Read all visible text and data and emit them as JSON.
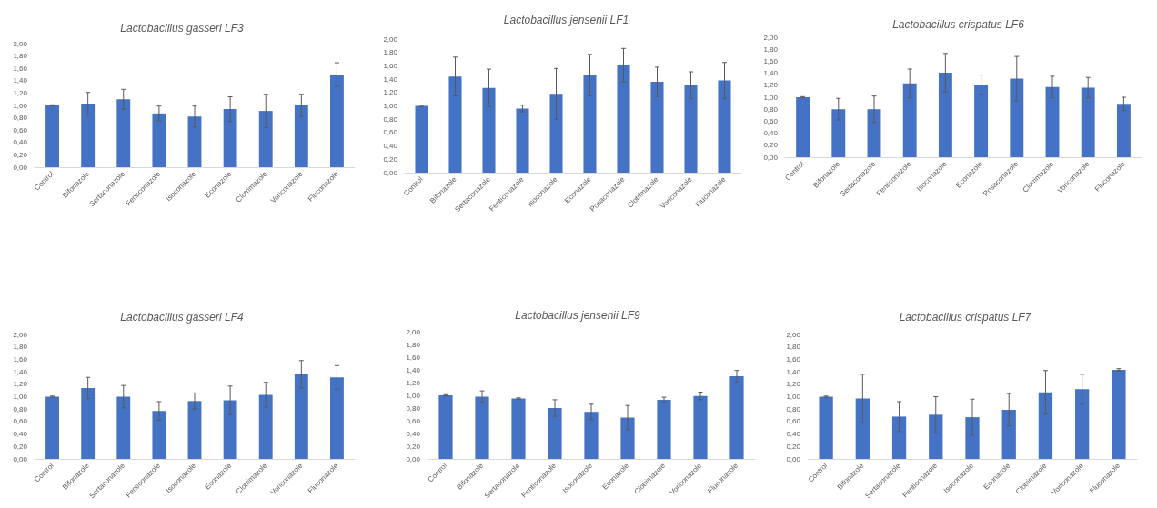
{
  "chart_data": [
    {
      "type": "bar",
      "title": "Lactobacillus gasseri LF3",
      "categories": [
        "Control",
        "Bifonazole",
        "Sertaconazole",
        "Fenticonazole",
        "Isoconazole",
        "Econazole",
        "Clotrimazole",
        "Voriconazole",
        "Fluconazole"
      ],
      "values": [
        1.0,
        1.03,
        1.1,
        0.87,
        0.82,
        0.94,
        0.91,
        1.0,
        1.5
      ],
      "errors": [
        0.01,
        0.18,
        0.16,
        0.12,
        0.17,
        0.2,
        0.27,
        0.18,
        0.19
      ],
      "color": "#4472c4",
      "ylim": [
        0,
        2
      ],
      "yticks": [
        {
          "value": 0,
          "label": "0,00"
        },
        {
          "value": 0.2,
          "label": "0,20"
        },
        {
          "value": 0.4,
          "label": "0,40"
        },
        {
          "value": 0.6,
          "label": "0,60"
        },
        {
          "value": 0.8,
          "label": "0,80"
        },
        {
          "value": 1,
          "label": "1,00"
        },
        {
          "value": 1.2,
          "label": "1,20"
        },
        {
          "value": 1.4,
          "label": "1,40"
        },
        {
          "value": 1.6,
          "label": "1,60"
        },
        {
          "value": 1.8,
          "label": "1,80"
        },
        {
          "value": 2,
          "label": "2,00"
        }
      ]
    },
    {
      "type": "bar",
      "title": "Lactobacillus jensenii LF1",
      "categories": [
        "Control",
        "Bifonazole",
        "Sertaconazole",
        "Fenticonazole",
        "Isoconazole",
        "Econazole",
        "Posaconazole",
        "Clotrimazole",
        "Voriconazole",
        "Fluconazole"
      ],
      "values": [
        1.0,
        1.44,
        1.27,
        0.96,
        1.18,
        1.46,
        1.61,
        1.36,
        1.31,
        1.38
      ],
      "errors": [
        0.01,
        0.29,
        0.28,
        0.05,
        0.38,
        0.31,
        0.25,
        0.22,
        0.2,
        0.27
      ],
      "color": "#4472c4",
      "ylim": [
        0,
        2
      ],
      "yticks": [
        {
          "value": 0,
          "label": "0,00"
        },
        {
          "value": 0.2,
          "label": "0,20"
        },
        {
          "value": 0.4,
          "label": "0,40"
        },
        {
          "value": 0.6,
          "label": "0,60"
        },
        {
          "value": 0.8,
          "label": "0,80"
        },
        {
          "value": 1,
          "label": "1,00"
        },
        {
          "value": 1.2,
          "label": "1,20"
        },
        {
          "value": 1.4,
          "label": "1,40"
        },
        {
          "value": 1.6,
          "label": "1,60"
        },
        {
          "value": 1.8,
          "label": "1,80"
        },
        {
          "value": 2,
          "label": "2,00"
        }
      ]
    },
    {
      "type": "bar",
      "title": "Lactobacillus crispatus LF6",
      "categories": [
        "Control",
        "Bifonazole",
        "Sertaconazole",
        "Fenticonazole",
        "Isoconazole",
        "Econazole",
        "Posaconazole",
        "Clotrimazole",
        "Voriconazole",
        "Fluconazole"
      ],
      "values": [
        1.0,
        0.8,
        0.8,
        1.23,
        1.41,
        1.21,
        1.31,
        1.17,
        1.16,
        0.89
      ],
      "errors": [
        0.01,
        0.18,
        0.22,
        0.24,
        0.32,
        0.16,
        0.37,
        0.18,
        0.17,
        0.11
      ],
      "color": "#4472c4",
      "ylim": [
        0,
        2
      ],
      "yticks": [
        {
          "value": 0,
          "label": "0,00"
        },
        {
          "value": 0.2,
          "label": "0,20"
        },
        {
          "value": 0.4,
          "label": "0,40"
        },
        {
          "value": 0.6,
          "label": "0,60"
        },
        {
          "value": 0.8,
          "label": "0,80"
        },
        {
          "value": 1,
          "label": "1,00"
        },
        {
          "value": 1.2,
          "label": "1,20"
        },
        {
          "value": 1.4,
          "label": "1,40"
        },
        {
          "value": 1.6,
          "label": "1,60"
        },
        {
          "value": 1.8,
          "label": "1,80"
        },
        {
          "value": 2,
          "label": "2,00"
        }
      ]
    },
    {
      "type": "bar",
      "title": "Lactobacillus gasseri LF4",
      "categories": [
        "Control",
        "Bifonazole",
        "Sertaconazole",
        "Fenticonazole",
        "Isoconazole",
        "Econazole",
        "Clotrimazole",
        "Voriconazole",
        "Fluconazole"
      ],
      "values": [
        1.0,
        1.14,
        1.0,
        0.77,
        0.93,
        0.94,
        1.03,
        1.36,
        1.31
      ],
      "errors": [
        0.01,
        0.17,
        0.18,
        0.15,
        0.13,
        0.23,
        0.2,
        0.22,
        0.19
      ],
      "color": "#4472c4",
      "ylim": [
        0,
        2
      ],
      "yticks": [
        {
          "value": 0,
          "label": "0,00"
        },
        {
          "value": 0.2,
          "label": "0,20"
        },
        {
          "value": 0.4,
          "label": "0,40"
        },
        {
          "value": 0.6,
          "label": "0,60"
        },
        {
          "value": 0.8,
          "label": "0,80"
        },
        {
          "value": 1,
          "label": "1,00"
        },
        {
          "value": 1.2,
          "label": "1,20"
        },
        {
          "value": 1.4,
          "label": "1,40"
        },
        {
          "value": 1.6,
          "label": "1,60"
        },
        {
          "value": 1.8,
          "label": "1,80"
        },
        {
          "value": 2,
          "label": "2,00"
        }
      ]
    },
    {
      "type": "bar",
      "title": "Lactobacillus jensenii LF9",
      "categories": [
        "Control",
        "Bifonazole",
        "Sertaconazole",
        "Fenticonazole",
        "Isoconazole",
        "Econazole",
        "Clotrimazole",
        "Voriconazole",
        "Fluconazole"
      ],
      "values": [
        1.0,
        0.98,
        0.95,
        0.8,
        0.74,
        0.65,
        0.93,
        0.99,
        1.3
      ],
      "errors": [
        0.01,
        0.09,
        0.01,
        0.13,
        0.12,
        0.19,
        0.04,
        0.06,
        0.09
      ],
      "color": "#4472c4",
      "ylim": [
        0,
        2
      ],
      "yticks": [
        {
          "value": 0,
          "label": "0,00"
        },
        {
          "value": 0.2,
          "label": "0,20"
        },
        {
          "value": 0.4,
          "label": "0,40"
        },
        {
          "value": 0.6,
          "label": "0,60"
        },
        {
          "value": 0.8,
          "label": "0,80"
        },
        {
          "value": 1,
          "label": "1,00"
        },
        {
          "value": 1.2,
          "label": "1,20"
        },
        {
          "value": 1.4,
          "label": "1,40"
        },
        {
          "value": 1.6,
          "label": "1,60"
        },
        {
          "value": 1.8,
          "label": "1,80"
        },
        {
          "value": 2,
          "label": "2,00"
        }
      ]
    },
    {
      "type": "bar",
      "title": "Lactobacillus crispatus LF7",
      "categories": [
        "Control",
        "Bifonazole",
        "Sertaconazole",
        "Fenticonazole",
        "Isoconazole",
        "Econazole",
        "Clotrimazole",
        "Voriconazole",
        "Fluconazole"
      ],
      "values": [
        1.0,
        0.97,
        0.68,
        0.71,
        0.67,
        0.79,
        1.07,
        1.12,
        1.43
      ],
      "errors": [
        0.01,
        0.39,
        0.24,
        0.29,
        0.29,
        0.26,
        0.35,
        0.24,
        0.02
      ],
      "color": "#4472c4",
      "ylim": [
        0,
        2
      ],
      "yticks": [
        {
          "value": 0,
          "label": "0,00"
        },
        {
          "value": 0.2,
          "label": "0,20"
        },
        {
          "value": 0.4,
          "label": "0,40"
        },
        {
          "value": 0.6,
          "label": "0,60"
        },
        {
          "value": 0.8,
          "label": "0,80"
        },
        {
          "value": 1,
          "label": "1,00"
        },
        {
          "value": 1.2,
          "label": "1,20"
        },
        {
          "value": 1.4,
          "label": "1,40"
        },
        {
          "value": 1.6,
          "label": "1,60"
        },
        {
          "value": 1.8,
          "label": "1,80"
        },
        {
          "value": 2,
          "label": "2,00"
        }
      ]
    }
  ]
}
